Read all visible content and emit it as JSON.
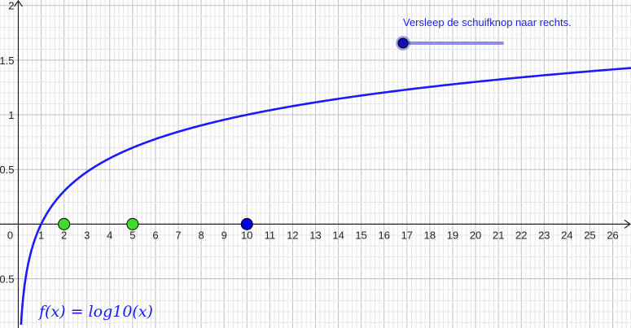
{
  "slider": {
    "caption": "Versleep de schuifknop naar rechts.",
    "position": 0.0
  },
  "function_label": "f(x) = log10(x)",
  "colors": {
    "curve": "#1a1aff",
    "slider_track": "#8c8cf0",
    "slider_knob": "#0f0fb4",
    "green_point": "#3ddc2b",
    "blue_point": "#0000e6",
    "grid_minor": "#e6e6e6",
    "grid_major": "#bfbfbf",
    "axis": "#222222"
  },
  "chart_data": {
    "type": "line",
    "title": "",
    "xlabel": "",
    "ylabel": "",
    "xlim": [
      -0.8,
      26.8
    ],
    "ylim": [
      -0.95,
      2.05
    ],
    "x_ticks": [
      0,
      1,
      2,
      3,
      4,
      5,
      6,
      7,
      8,
      9,
      10,
      11,
      12,
      13,
      14,
      15,
      16,
      17,
      18,
      19,
      20,
      21,
      22,
      23,
      24,
      25,
      26
    ],
    "y_ticks": [
      -0.5,
      0.5,
      1,
      1.5,
      2
    ],
    "grid": true,
    "series": [
      {
        "function": "log10(x)",
        "x_domain": [
          0.12,
          26.8
        ]
      }
    ],
    "points": [
      {
        "x": 2,
        "y": 0,
        "style": "green"
      },
      {
        "x": 5,
        "y": 0,
        "style": "green"
      },
      {
        "x": 10,
        "y": 0,
        "style": "blue"
      }
    ]
  }
}
